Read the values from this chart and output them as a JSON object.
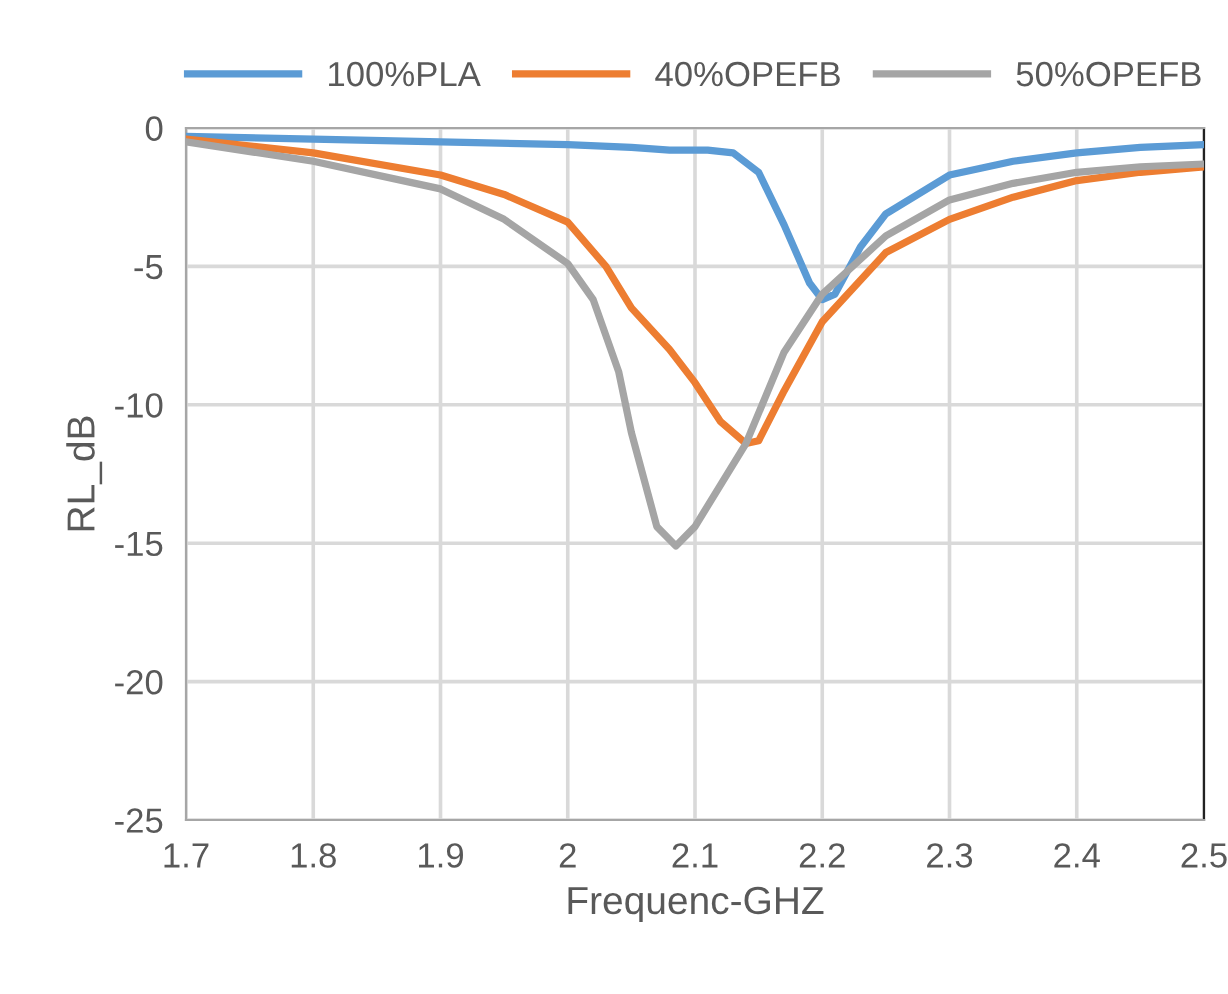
{
  "chart_data": {
    "type": "line",
    "xlabel": "Frequenc-GHZ",
    "ylabel": "RL_dB",
    "xlim": [
      1.7,
      2.5
    ],
    "xticks": [
      1.7,
      1.8,
      1.9,
      2,
      2.1,
      2.2,
      2.3,
      2.4,
      2.5
    ],
    "ylim": [
      -25,
      0
    ],
    "yticks": [
      -25,
      -20,
      -15,
      -10,
      -5,
      0
    ],
    "grid": true,
    "legend": "top",
    "marker": "none",
    "line_style": "solid",
    "series": [
      {
        "name": "100%PLA",
        "color": "#5b9bd5",
        "x": [
          1.7,
          1.8,
          1.9,
          2.0,
          2.05,
          2.08,
          2.11,
          2.13,
          2.15,
          2.17,
          2.19,
          2.2,
          2.21,
          2.23,
          2.25,
          2.3,
          2.35,
          2.4,
          2.45,
          2.5
        ],
        "values": [
          -0.3,
          -0.4,
          -0.5,
          -0.6,
          -0.7,
          -0.8,
          -0.8,
          -0.9,
          -1.6,
          -3.5,
          -5.6,
          -6.2,
          -6.0,
          -4.3,
          -3.1,
          -1.7,
          -1.2,
          -0.9,
          -0.7,
          -0.6
        ]
      },
      {
        "name": "40%OPEFB",
        "color": "#ed7d31",
        "x": [
          1.7,
          1.8,
          1.9,
          1.95,
          2.0,
          2.03,
          2.05,
          2.08,
          2.1,
          2.12,
          2.14,
          2.15,
          2.17,
          2.2,
          2.25,
          2.3,
          2.35,
          2.4,
          2.45,
          2.5
        ],
        "values": [
          -0.4,
          -0.9,
          -1.7,
          -2.4,
          -3.4,
          -5.0,
          -6.5,
          -8.0,
          -9.2,
          -10.6,
          -11.4,
          -11.3,
          -9.5,
          -7.0,
          -4.5,
          -3.3,
          -2.5,
          -1.9,
          -1.6,
          -1.4
        ]
      },
      {
        "name": "50%OPEFB",
        "color": "#a5a5a5",
        "x": [
          1.7,
          1.8,
          1.9,
          1.95,
          2.0,
          2.02,
          2.04,
          2.05,
          2.07,
          2.085,
          2.1,
          2.12,
          2.14,
          2.17,
          2.2,
          2.25,
          2.3,
          2.35,
          2.4,
          2.45,
          2.5
        ],
        "values": [
          -0.5,
          -1.2,
          -2.2,
          -3.3,
          -4.9,
          -6.2,
          -8.8,
          -11.0,
          -14.4,
          -15.1,
          -14.4,
          -12.9,
          -11.4,
          -8.1,
          -6.0,
          -3.9,
          -2.6,
          -2.0,
          -1.6,
          -1.4,
          -1.3
        ]
      }
    ]
  }
}
